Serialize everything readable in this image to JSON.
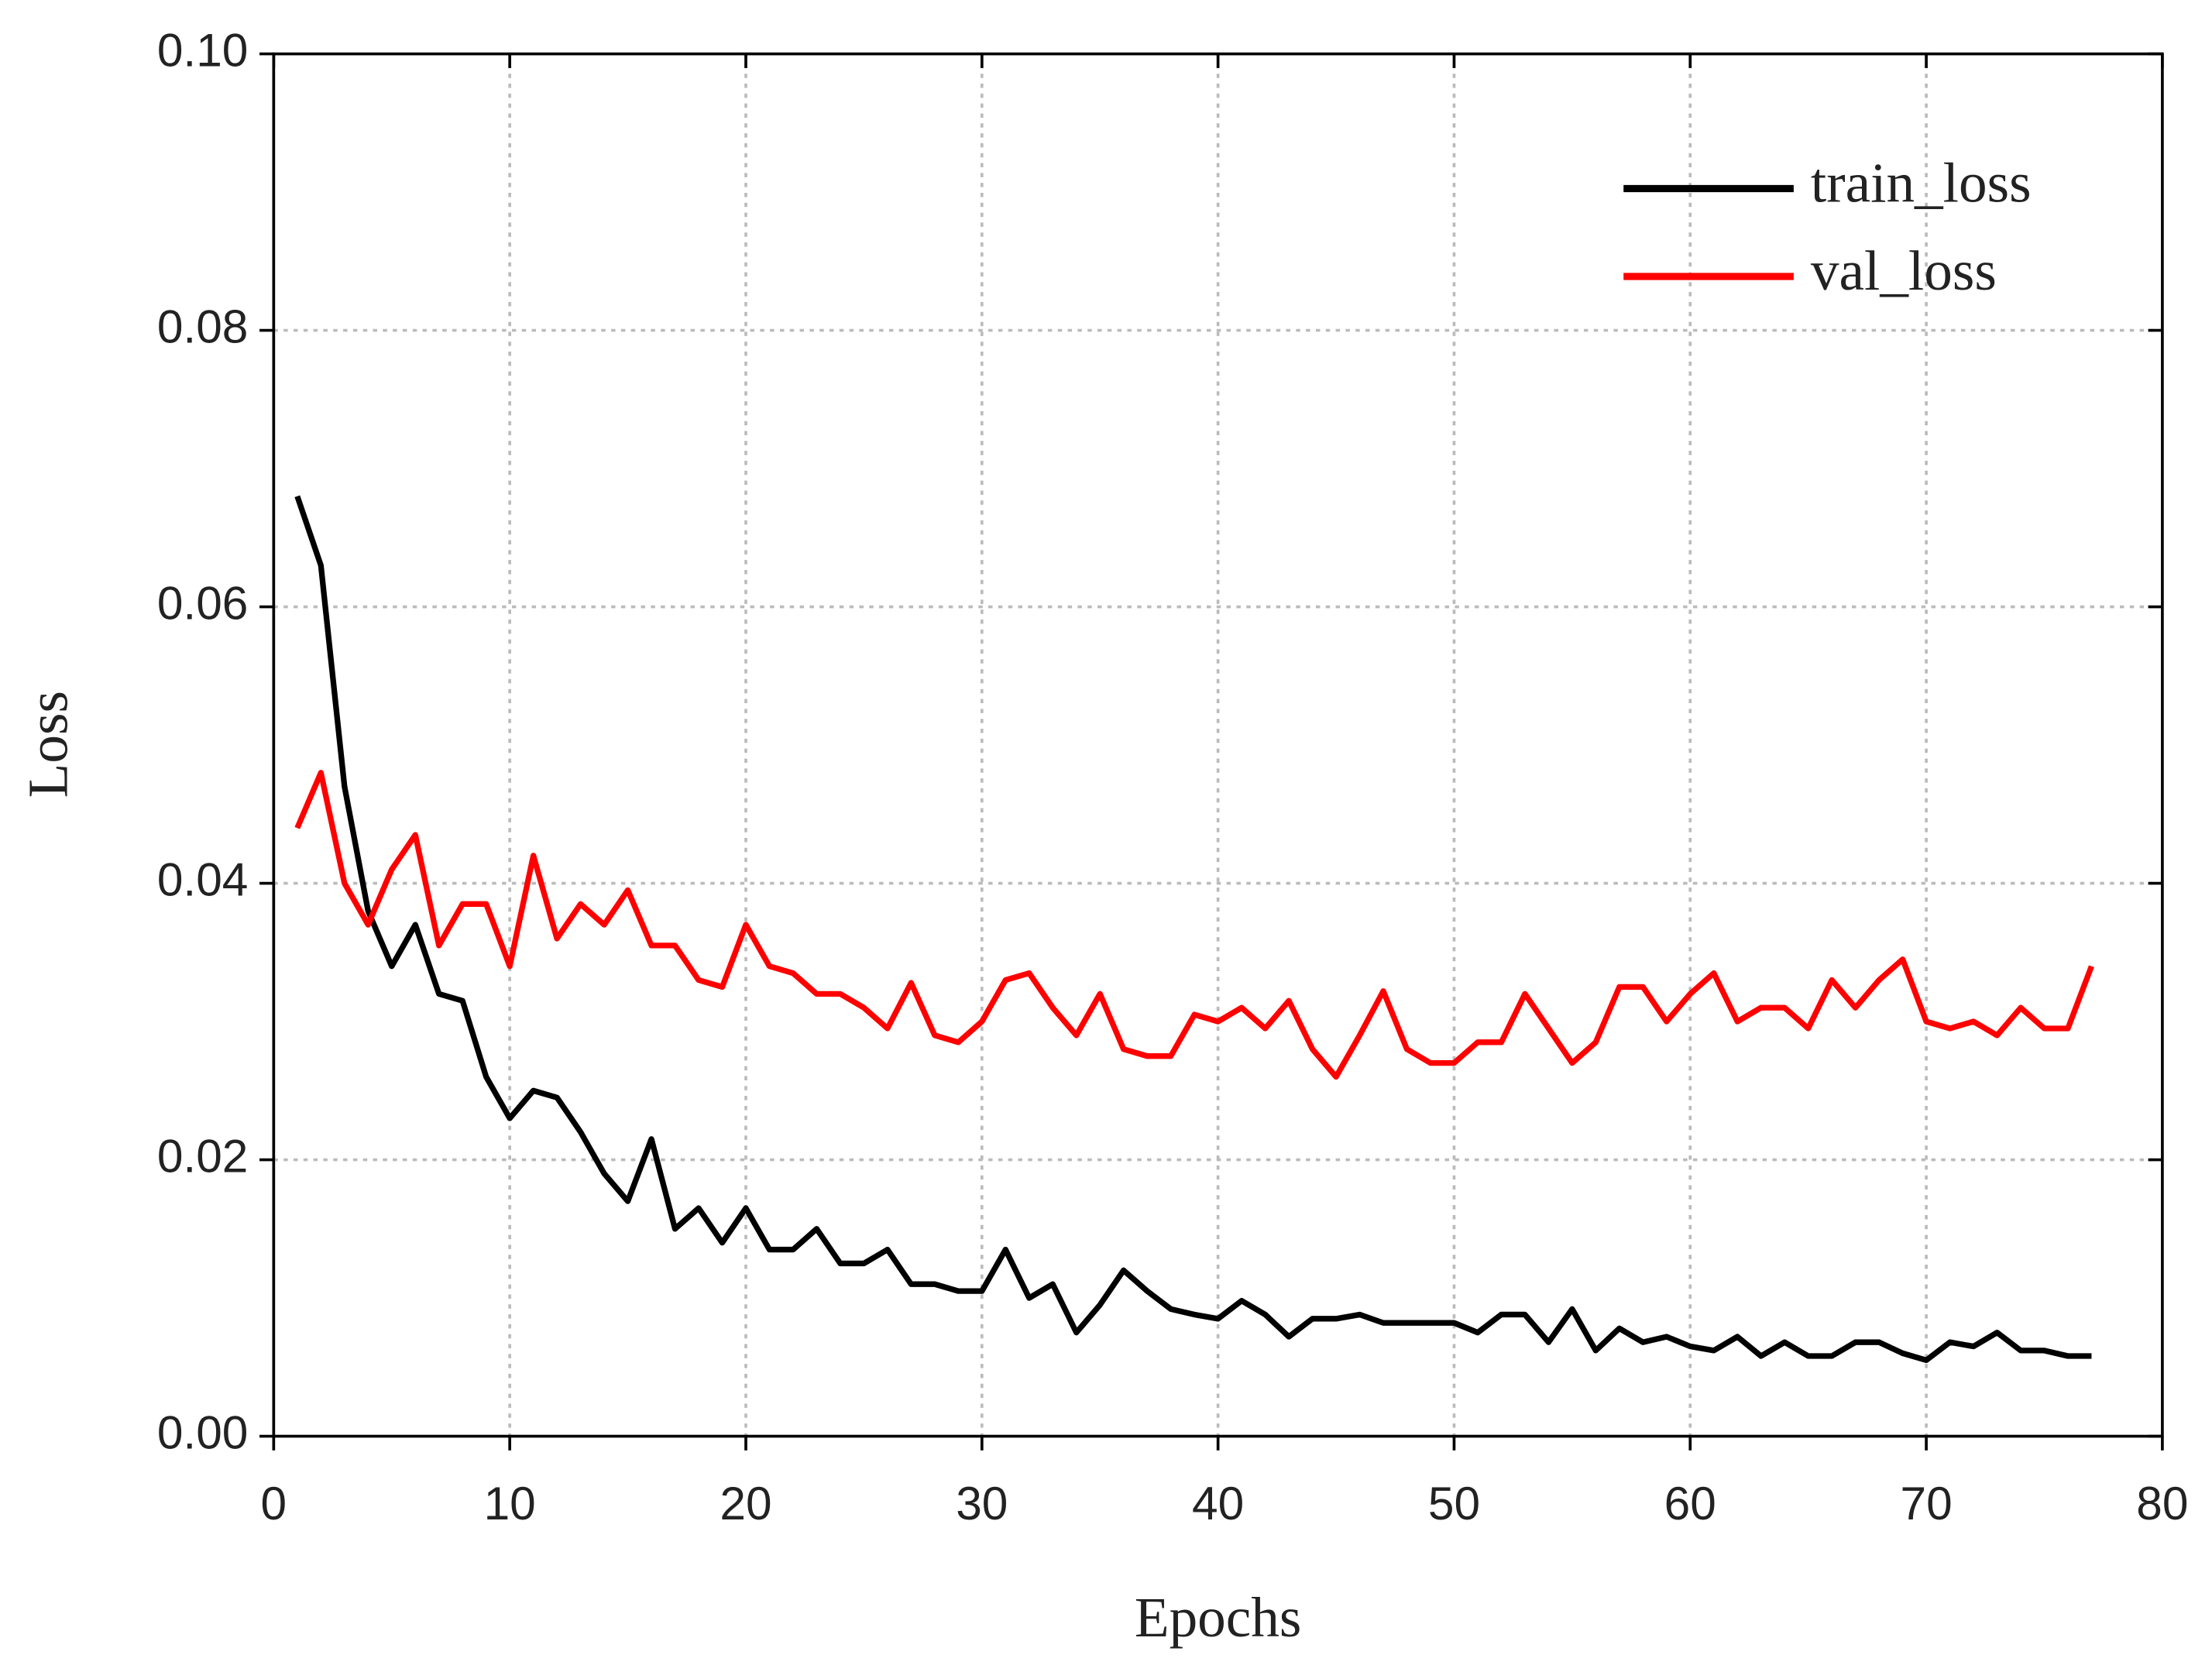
{
  "chart_data": {
    "type": "line",
    "xlabel": "Epochs",
    "ylabel": "Loss",
    "x": [
      1,
      2,
      3,
      4,
      5,
      6,
      7,
      8,
      9,
      10,
      11,
      12,
      13,
      14,
      15,
      16,
      17,
      18,
      19,
      20,
      21,
      22,
      23,
      24,
      25,
      26,
      27,
      28,
      29,
      30,
      31,
      32,
      33,
      34,
      35,
      36,
      37,
      38,
      39,
      40,
      41,
      42,
      43,
      44,
      45,
      46,
      47,
      48,
      49,
      50,
      51,
      52,
      53,
      54,
      55,
      56,
      57,
      58,
      59,
      60,
      61,
      62,
      63,
      64,
      65,
      66,
      67,
      68,
      69,
      70,
      71,
      72,
      73,
      74,
      75,
      76,
      77
    ],
    "series": [
      {
        "name": "train_loss",
        "color": "#000000",
        "values": [
          0.068,
          0.063,
          0.047,
          0.038,
          0.034,
          0.037,
          0.032,
          0.0315,
          0.026,
          0.023,
          0.025,
          0.0245,
          0.022,
          0.019,
          0.017,
          0.0215,
          0.015,
          0.0165,
          0.014,
          0.0165,
          0.0135,
          0.0135,
          0.015,
          0.0125,
          0.0125,
          0.0135,
          0.011,
          0.011,
          0.0105,
          0.0105,
          0.0135,
          0.01,
          0.011,
          0.0075,
          0.0095,
          0.012,
          0.0105,
          0.0092,
          0.0088,
          0.0085,
          0.0098,
          0.0088,
          0.0072,
          0.0085,
          0.0085,
          0.0088,
          0.0082,
          0.0082,
          0.0082,
          0.0082,
          0.0075,
          0.0088,
          0.0088,
          0.0068,
          0.0092,
          0.0062,
          0.0078,
          0.0068,
          0.0072,
          0.0065,
          0.0062,
          0.0072,
          0.0058,
          0.0068,
          0.0058,
          0.0058,
          0.0068,
          0.0068,
          0.006,
          0.0055,
          0.0068,
          0.0065,
          0.0075,
          0.0062,
          0.0062,
          0.0058,
          0.0058
        ]
      },
      {
        "name": "val_loss",
        "color": "#ff0000",
        "values": [
          0.044,
          0.048,
          0.04,
          0.037,
          0.041,
          0.0435,
          0.0355,
          0.0385,
          0.0385,
          0.034,
          0.042,
          0.036,
          0.0385,
          0.037,
          0.0395,
          0.0355,
          0.0355,
          0.033,
          0.0325,
          0.037,
          0.034,
          0.0335,
          0.032,
          0.032,
          0.031,
          0.0295,
          0.0328,
          0.029,
          0.0285,
          0.03,
          0.033,
          0.0335,
          0.031,
          0.029,
          0.032,
          0.028,
          0.0275,
          0.0275,
          0.0305,
          0.03,
          0.031,
          0.0295,
          0.0315,
          0.028,
          0.026,
          0.029,
          0.0322,
          0.028,
          0.027,
          0.027,
          0.0285,
          0.0285,
          0.032,
          0.0295,
          0.027,
          0.0285,
          0.0325,
          0.0325,
          0.03,
          0.032,
          0.0335,
          0.03,
          0.031,
          0.031,
          0.0295,
          0.033,
          0.031,
          0.033,
          0.0345,
          0.03,
          0.0295,
          0.03,
          0.029,
          0.031,
          0.0295,
          0.0295,
          0.034
        ]
      }
    ],
    "xlim": [
      0,
      80
    ],
    "xticks": [
      0,
      10,
      20,
      30,
      40,
      50,
      60,
      70,
      80
    ],
    "ylim": [
      0,
      0.1
    ],
    "yticks": [
      {
        "value": 0,
        "label": "0.00"
      },
      {
        "value": 0.02,
        "label": "0.02"
      },
      {
        "value": 0.04,
        "label": "0.04"
      },
      {
        "value": 0.06,
        "label": "0.06"
      },
      {
        "value": 0.08,
        "label": "0.08"
      },
      {
        "value": 0.1,
        "label": "0.10"
      }
    ],
    "grid": true,
    "legend": "upper right"
  }
}
